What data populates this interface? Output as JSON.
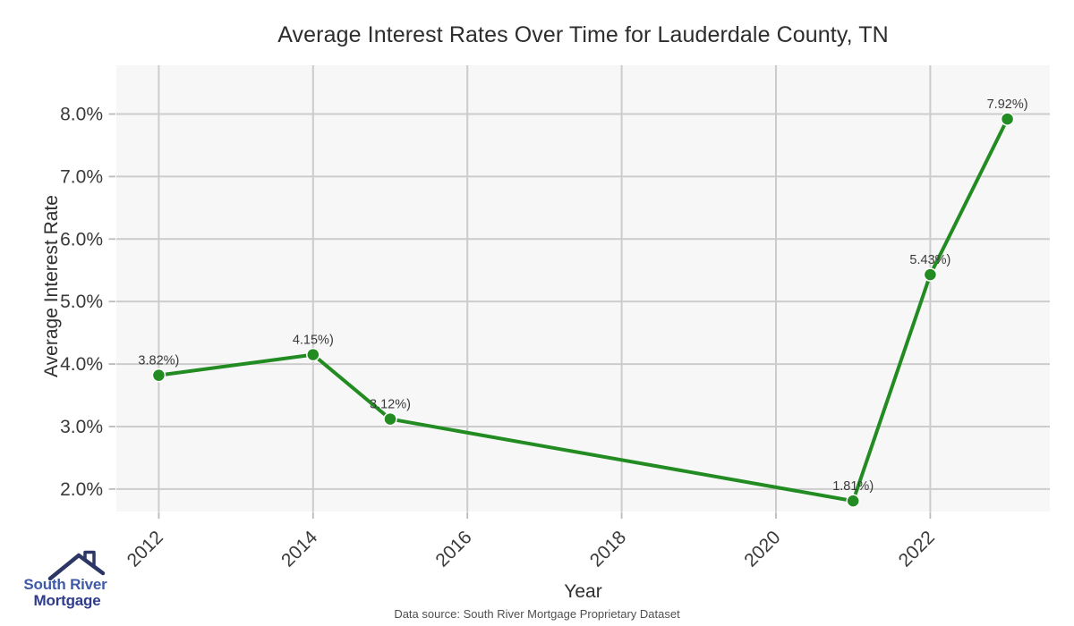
{
  "title": "Average Interest Rates Over Time for Lauderdale County, TN",
  "footer": {
    "source": "Data source: South River Mortgage Proprietary Dataset"
  },
  "logo": {
    "line1": "South River",
    "line2": "Mortgage"
  },
  "colors": {
    "line": "#228B22",
    "marker_edge": "#ffffff",
    "plot_bg": "#f7f7f7",
    "grid": "#cccccc",
    "tick": "#bbbbbb",
    "tick_label": "#3a3a3a",
    "point_label": "#3a3a3a",
    "logo_roof": "#2c3766",
    "logo_text_top": "#3f5aa8",
    "logo_text_bottom": "#2f3c8c"
  },
  "chart_data": {
    "type": "line",
    "title": "Average Interest Rates Over Time for Lauderdale County, TN",
    "xlabel": "Year",
    "ylabel": "Average Interest Rate",
    "x": [
      2012,
      2014,
      2015,
      2021,
      2022,
      2023
    ],
    "values": [
      3.82,
      4.15,
      3.12,
      1.81,
      5.43,
      7.92
    ],
    "point_labels": [
      "3.82%)",
      "4.15%)",
      "3.12%)",
      "1.81%)",
      "5.43%)",
      "7.92%)"
    ],
    "xticks": {
      "values": [
        2012,
        2014,
        2016,
        2018,
        2020,
        2022
      ],
      "labels": [
        "2012",
        "2014",
        "2016",
        "2018",
        "2020",
        "2022"
      ]
    },
    "yticks": {
      "values": [
        2,
        3,
        4,
        5,
        6,
        7,
        8
      ],
      "labels": [
        "2.0%",
        "3.0%",
        "4.0%",
        "5.0%",
        "6.0%",
        "7.0%",
        "8.0%"
      ]
    },
    "xlim": [
      2011.45,
      2023.55
    ],
    "ylim": [
      1.64,
      8.78
    ],
    "grid": true,
    "legend": "none",
    "marker": "circle"
  }
}
